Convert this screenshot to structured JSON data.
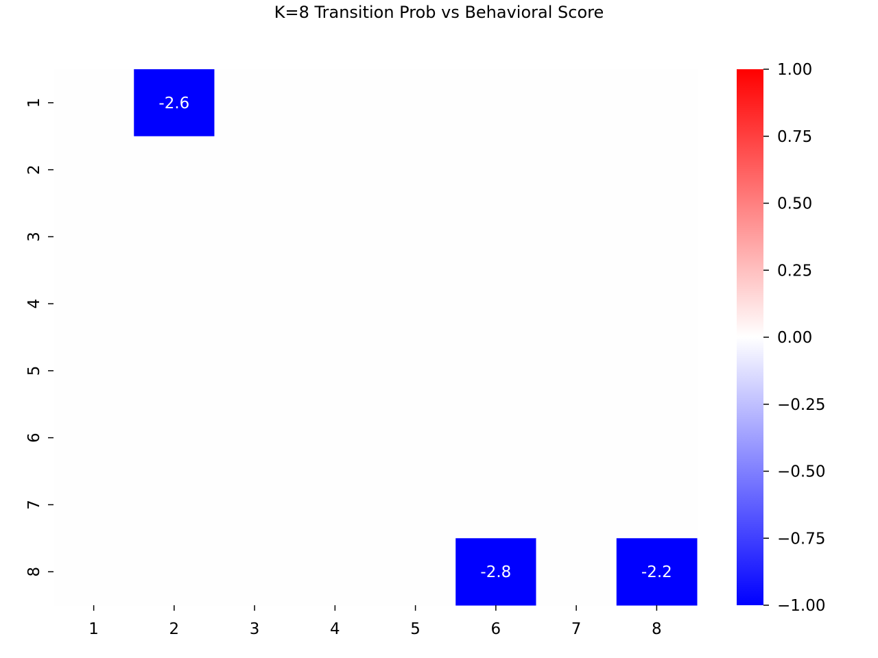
{
  "chart_data": {
    "type": "heatmap",
    "title": "K=8 Transition Prob vs Behavioral Score",
    "xlabel": "",
    "ylabel": "",
    "x_categories": [
      "1",
      "2",
      "3",
      "4",
      "5",
      "6",
      "7",
      "8"
    ],
    "y_categories": [
      "1",
      "2",
      "3",
      "4",
      "5",
      "6",
      "7",
      "8"
    ],
    "values": [
      [
        0,
        -2.6,
        0,
        0,
        0,
        0,
        0,
        0
      ],
      [
        0,
        0,
        0,
        0,
        0,
        0,
        0,
        0
      ],
      [
        0,
        0,
        0,
        0,
        0,
        0,
        0,
        0
      ],
      [
        0,
        0,
        0,
        0,
        0,
        0,
        0,
        0
      ],
      [
        0,
        0,
        0,
        0,
        0,
        0,
        0,
        0
      ],
      [
        0,
        0,
        0,
        0,
        0,
        0,
        0,
        0
      ],
      [
        0,
        0,
        0,
        0,
        0,
        0,
        0,
        0
      ],
      [
        0,
        0,
        0,
        0,
        0,
        -2.8,
        0,
        -2.2
      ]
    ],
    "annotations": [
      {
        "row": 0,
        "col": 1,
        "label": "-2.6"
      },
      {
        "row": 7,
        "col": 5,
        "label": "-2.8"
      },
      {
        "row": 7,
        "col": 7,
        "label": "-2.2"
      }
    ],
    "colormap": "bwr",
    "vmin": -1.0,
    "vmax": 1.0,
    "colors": {
      "low": "#0000ff",
      "mid": "#ffffff",
      "high": "#ff0000",
      "near_zero_cell": "#fefefe"
    },
    "colorbar_ticks": [
      "1.00",
      "0.75",
      "0.50",
      "0.25",
      "0.00",
      "−0.25",
      "−0.50",
      "−0.75",
      "−1.00"
    ],
    "colorbar_tick_values": [
      1.0,
      0.75,
      0.5,
      0.25,
      0.0,
      -0.25,
      -0.5,
      -0.75,
      -1.0
    ],
    "grid": false,
    "legend": "colorbar-right"
  }
}
